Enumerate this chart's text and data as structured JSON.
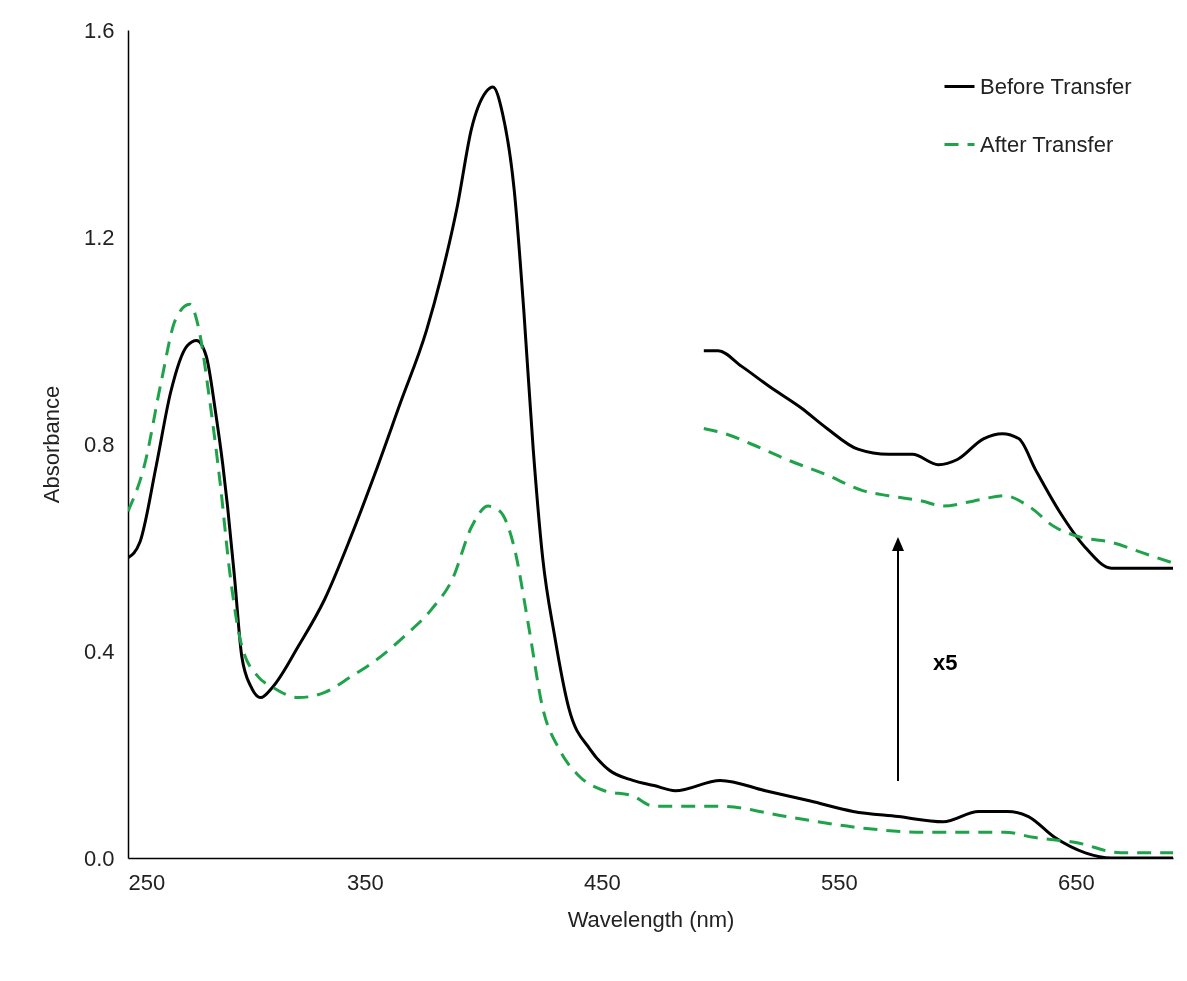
{
  "chart_data": {
    "type": "line",
    "xlabel": "Wavelength (nm)",
    "ylabel": "Absorbance",
    "xlim": [
      250,
      691
    ],
    "xticks": [
      250,
      350,
      450,
      550,
      650
    ],
    "ylim": [
      0,
      1.6
    ],
    "yticks": [
      {
        "value": 0,
        "label": "0.0"
      },
      {
        "value": 0.4,
        "label": "0.4"
      },
      {
        "value": 0.8,
        "label": "0.8"
      },
      {
        "value": 1.2,
        "label": "1.2"
      },
      {
        "value": 1.6,
        "label": "1.6"
      }
    ],
    "grid": false,
    "legend": "top right",
    "annotations": [
      "x5"
    ],
    "series": [
      {
        "name": "Before Transfer",
        "color": "#000000",
        "line_style": "solid",
        "x": [
          250,
          255,
          262,
          268,
          275,
          279,
          283,
          287,
          290,
          292,
          295,
          298,
          302,
          306,
          311,
          322,
          333,
          344,
          354,
          365,
          376,
          382,
          389,
          395,
          401,
          404,
          408,
          413,
          417,
          421,
          425,
          430,
          436,
          445,
          453,
          463,
          472,
          481,
          500,
          519,
          538,
          556,
          575,
          594,
          609,
          621,
          630,
          641,
          654,
          665,
          691
        ],
        "values": [
          0.58,
          0.61,
          0.76,
          0.9,
          0.99,
          1.0,
          0.97,
          0.86,
          0.76,
          0.68,
          0.54,
          0.39,
          0.33,
          0.31,
          0.33,
          0.41,
          0.5,
          0.62,
          0.74,
          0.88,
          1.02,
          1.12,
          1.26,
          1.41,
          1.48,
          1.49,
          1.44,
          1.29,
          1.06,
          0.79,
          0.58,
          0.43,
          0.29,
          0.21,
          0.17,
          0.15,
          0.14,
          0.13,
          0.15,
          0.13,
          0.11,
          0.09,
          0.08,
          0.07,
          0.09,
          0.09,
          0.08,
          0.04,
          0.01,
          0.0,
          0.0
        ]
      },
      {
        "name": "After Transfer",
        "color": "#1fa34a",
        "line_style": "dashed",
        "x": [
          250,
          257,
          264,
          270,
          276,
          280,
          284,
          289,
          293,
          298,
          305,
          311,
          322,
          333,
          344,
          354,
          367,
          378,
          387,
          395,
          402,
          407,
          413,
          419,
          425,
          432,
          440,
          451,
          463,
          472,
          500,
          528,
          556,
          585,
          603,
          620,
          632,
          650,
          669,
          691
        ],
        "values": [
          0.67,
          0.76,
          0.92,
          1.04,
          1.07,
          1.02,
          0.9,
          0.72,
          0.55,
          0.41,
          0.35,
          0.33,
          0.31,
          0.32,
          0.35,
          0.38,
          0.43,
          0.48,
          0.54,
          0.64,
          0.68,
          0.67,
          0.6,
          0.45,
          0.29,
          0.21,
          0.16,
          0.13,
          0.12,
          0.1,
          0.1,
          0.08,
          0.06,
          0.05,
          0.05,
          0.05,
          0.04,
          0.03,
          0.01,
          0.01
        ]
      },
      {
        "color": "#000000",
        "line_style": "solid",
        "x": [
          493,
          499,
          509,
          521,
          534,
          545,
          558,
          571,
          581,
          592,
          600,
          611,
          619,
          626,
          633,
          643,
          654,
          665,
          675,
          691
        ],
        "values": [
          0.98,
          0.98,
          0.95,
          0.91,
          0.87,
          0.83,
          0.79,
          0.78,
          0.78,
          0.76,
          0.77,
          0.81,
          0.82,
          0.81,
          0.75,
          0.67,
          0.6,
          0.56,
          0.56,
          0.56
        ]
      },
      {
        "color": "#1fa34a",
        "line_style": "dashed",
        "x": [
          493,
          502,
          513,
          528,
          545,
          560,
          571,
          585,
          594,
          607,
          620,
          630,
          641,
          652,
          665,
          678,
          691
        ],
        "values": [
          0.83,
          0.82,
          0.8,
          0.77,
          0.74,
          0.71,
          0.7,
          0.69,
          0.68,
          0.69,
          0.7,
          0.68,
          0.64,
          0.62,
          0.61,
          0.59,
          0.57
        ]
      }
    ]
  }
}
